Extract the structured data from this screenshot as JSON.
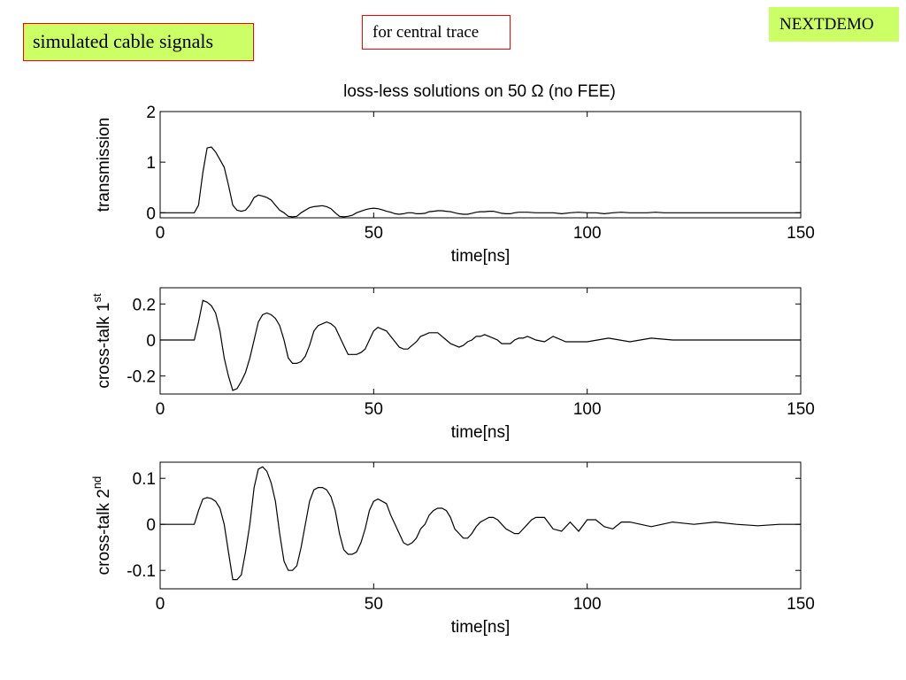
{
  "slide": {
    "main_label": "simulated cable signals",
    "sub_label": "for central trace",
    "brand_label": "NEXTDEMO",
    "main_label_bg": "#ccff66",
    "brand_label_bg": "#ccff66",
    "label_border_color": "#ff0000"
  },
  "figure_title": "loss-less solutions on 50 Ω (no FEE)",
  "chart_data": [
    {
      "type": "line",
      "title": "loss-less solutions on 50 Ω (no FEE)",
      "xlabel": "time[ns]",
      "ylabel": "transmission",
      "ylabel_sup": "",
      "xlim": [
        0,
        150
      ],
      "ylim": [
        -0.1,
        2
      ],
      "xticks": [
        0,
        50,
        100,
        150
      ],
      "xtick_labels": [
        "0",
        "50",
        "100",
        "150"
      ],
      "yticks": [
        0,
        1,
        2
      ],
      "ytick_labels": [
        "0",
        "1",
        "2"
      ],
      "grid": false,
      "series": [
        {
          "x": [
            0,
            8,
            9,
            10,
            11,
            12,
            13,
            14,
            15,
            16,
            17,
            18,
            19,
            20,
            21,
            22,
            23,
            24,
            25,
            26,
            27,
            28,
            29,
            30,
            31,
            32,
            33,
            34,
            35,
            36,
            37,
            38,
            39,
            40,
            41,
            42,
            43,
            44,
            45,
            46,
            47,
            48,
            49,
            50,
            51,
            52,
            53,
            54,
            55,
            56,
            57,
            58,
            59,
            60,
            61,
            62,
            63,
            64,
            65,
            66,
            67,
            68,
            69,
            70,
            71,
            72,
            73,
            74,
            75,
            76,
            77,
            78,
            79,
            80,
            81,
            82,
            83,
            84,
            86,
            88,
            90,
            92,
            94,
            96,
            98,
            100,
            102,
            104,
            106,
            108,
            110,
            112,
            114,
            116,
            118,
            120,
            125,
            130,
            135,
            140,
            145,
            150
          ],
          "y": [
            0,
            0,
            0.15,
            0.8,
            1.28,
            1.3,
            1.2,
            1.05,
            0.9,
            0.55,
            0.15,
            0.05,
            0.03,
            0.05,
            0.15,
            0.3,
            0.35,
            0.33,
            0.3,
            0.25,
            0.15,
            0.05,
            0.0,
            -0.07,
            -0.08,
            -0.07,
            0.0,
            0.05,
            0.1,
            0.12,
            0.13,
            0.14,
            0.12,
            0.08,
            0.0,
            -0.07,
            -0.08,
            -0.07,
            -0.05,
            0.0,
            0.03,
            0.06,
            0.08,
            0.09,
            0.08,
            0.06,
            0.03,
            0.01,
            -0.02,
            -0.03,
            -0.02,
            0.0,
            0.0,
            -0.02,
            -0.02,
            -0.01,
            0.02,
            0.03,
            0.04,
            0.04,
            0.03,
            0.02,
            0.0,
            -0.02,
            -0.03,
            -0.03,
            -0.01,
            0.01,
            0.02,
            0.02,
            0.03,
            0.03,
            0.01,
            -0.01,
            -0.02,
            -0.02,
            0.0,
            0.01,
            0.01,
            0.0,
            0.0,
            0.0,
            -0.02,
            0.0,
            0.01,
            0.0,
            0.0,
            -0.02,
            0.0,
            0.01,
            0.0,
            0.0,
            0.0,
            0.01,
            0.0,
            0.0,
            0.0,
            0.0,
            0.0,
            0.0,
            0.0,
            0.0
          ]
        }
      ]
    },
    {
      "type": "line",
      "title": "",
      "xlabel": "time[ns]",
      "ylabel": "cross-talk 1",
      "ylabel_sup": "st",
      "xlim": [
        0,
        150
      ],
      "ylim": [
        -0.3,
        0.29
      ],
      "xticks": [
        0,
        50,
        100,
        150
      ],
      "xtick_labels": [
        "0",
        "50",
        "100",
        "150"
      ],
      "yticks": [
        -0.2,
        0,
        0.2
      ],
      "ytick_labels": [
        "-0.2",
        "0",
        "0.2"
      ],
      "grid": false,
      "series": [
        {
          "x": [
            0,
            8,
            9,
            10,
            11,
            12,
            13,
            14,
            15,
            16,
            17,
            18,
            19,
            20,
            21,
            22,
            23,
            24,
            25,
            26,
            27,
            28,
            29,
            30,
            31,
            32,
            33,
            34,
            35,
            36,
            37,
            38,
            39,
            40,
            41,
            42,
            43,
            44,
            45,
            46,
            47,
            48,
            49,
            50,
            51,
            52,
            53,
            54,
            55,
            56,
            57,
            58,
            59,
            60,
            61,
            62,
            63,
            64,
            65,
            66,
            67,
            68,
            69,
            70,
            71,
            72,
            73,
            74,
            75,
            76,
            77,
            78,
            79,
            80,
            81,
            82,
            83,
            84,
            85,
            86,
            87,
            88,
            90,
            92,
            95,
            100,
            105,
            110,
            115,
            120,
            125,
            130,
            135,
            140,
            145,
            150
          ],
          "y": [
            0,
            0,
            0.1,
            0.22,
            0.21,
            0.19,
            0.15,
            0.05,
            -0.1,
            -0.2,
            -0.28,
            -0.27,
            -0.23,
            -0.18,
            -0.1,
            0.0,
            0.1,
            0.14,
            0.15,
            0.14,
            0.12,
            0.08,
            0.0,
            -0.1,
            -0.13,
            -0.13,
            -0.12,
            -0.09,
            -0.03,
            0.05,
            0.08,
            0.09,
            0.1,
            0.09,
            0.07,
            0.02,
            -0.03,
            -0.08,
            -0.08,
            -0.08,
            -0.07,
            -0.05,
            0.0,
            0.05,
            0.07,
            0.06,
            0.05,
            0.02,
            -0.01,
            -0.04,
            -0.05,
            -0.05,
            -0.03,
            -0.01,
            0.02,
            0.03,
            0.04,
            0.04,
            0.04,
            0.02,
            0.0,
            -0.02,
            -0.03,
            -0.04,
            -0.03,
            -0.01,
            0.0,
            0.02,
            0.02,
            0.03,
            0.02,
            0.01,
            0.0,
            -0.02,
            -0.02,
            -0.02,
            0.0,
            0.01,
            0.01,
            0.02,
            0.01,
            0.0,
            -0.01,
            0.02,
            -0.01,
            -0.01,
            0.01,
            -0.01,
            0.01,
            0.0,
            0.0,
            0.0,
            0.0,
            0.0,
            0.0,
            0.0
          ]
        }
      ]
    },
    {
      "type": "line",
      "title": "",
      "xlabel": "time[ns]",
      "ylabel": "cross-talk 2",
      "ylabel_sup": "nd",
      "xlim": [
        0,
        150
      ],
      "ylim": [
        -0.14,
        0.135
      ],
      "xticks": [
        0,
        50,
        100,
        150
      ],
      "xtick_labels": [
        "0",
        "50",
        "100",
        "150"
      ],
      "yticks": [
        -0.1,
        0,
        0.1
      ],
      "ytick_labels": [
        "-0.1",
        "0",
        "0.1"
      ],
      "grid": false,
      "series": [
        {
          "x": [
            0,
            8,
            9,
            10,
            11,
            12,
            13,
            14,
            15,
            16,
            17,
            18,
            19,
            20,
            21,
            22,
            23,
            24,
            25,
            26,
            27,
            28,
            29,
            30,
            31,
            32,
            33,
            34,
            35,
            36,
            37,
            38,
            39,
            40,
            41,
            42,
            43,
            44,
            45,
            46,
            47,
            48,
            49,
            50,
            51,
            52,
            53,
            54,
            55,
            56,
            57,
            58,
            59,
            60,
            61,
            62,
            63,
            64,
            65,
            66,
            67,
            68,
            69,
            70,
            71,
            72,
            73,
            74,
            75,
            76,
            77,
            78,
            79,
            80,
            81,
            82,
            83,
            84,
            85,
            86,
            87,
            88,
            89,
            90,
            92,
            94,
            96,
            98,
            100,
            102,
            104,
            106,
            108,
            110,
            115,
            120,
            125,
            130,
            135,
            140,
            145,
            150
          ],
          "y": [
            0,
            0,
            0.03,
            0.055,
            0.058,
            0.056,
            0.05,
            0.035,
            0.0,
            -0.06,
            -0.12,
            -0.12,
            -0.11,
            -0.06,
            0.0,
            0.08,
            0.12,
            0.125,
            0.115,
            0.09,
            0.05,
            -0.02,
            -0.08,
            -0.1,
            -0.1,
            -0.09,
            -0.05,
            0.0,
            0.05,
            0.075,
            0.08,
            0.08,
            0.075,
            0.06,
            0.03,
            -0.02,
            -0.055,
            -0.065,
            -0.065,
            -0.06,
            -0.04,
            -0.01,
            0.03,
            0.05,
            0.055,
            0.05,
            0.045,
            0.02,
            0.0,
            -0.02,
            -0.04,
            -0.045,
            -0.04,
            -0.03,
            -0.01,
            0.0,
            0.02,
            0.03,
            0.035,
            0.035,
            0.03,
            0.015,
            -0.01,
            -0.02,
            -0.03,
            -0.03,
            -0.02,
            -0.005,
            0.005,
            0.01,
            0.015,
            0.015,
            0.01,
            0.0,
            -0.01,
            -0.015,
            -0.02,
            -0.02,
            -0.01,
            0.0,
            0.01,
            0.015,
            0.015,
            0.015,
            -0.01,
            -0.015,
            0.005,
            -0.015,
            0.01,
            0.01,
            -0.005,
            -0.01,
            0.005,
            0.005,
            -0.005,
            0.005,
            0.0,
            0.005,
            0.0,
            -0.003,
            0.0,
            0.0
          ]
        }
      ]
    }
  ]
}
